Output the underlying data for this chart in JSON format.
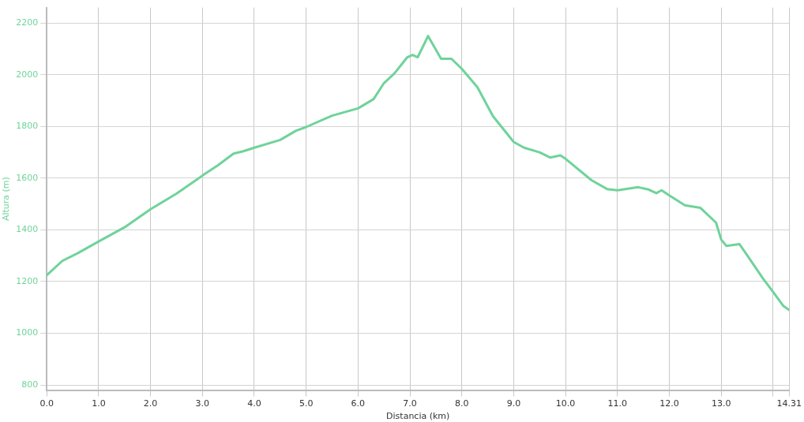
{
  "chart_data": {
    "type": "line",
    "xlabel": "Distancia (km)",
    "ylabel": "Altura (m)",
    "x": [
      0,
      0.3,
      0.6,
      1.0,
      1.5,
      2.0,
      2.5,
      3.0,
      3.3,
      3.6,
      3.8,
      4.0,
      4.5,
      4.8,
      5.0,
      5.5,
      6.0,
      6.3,
      6.5,
      6.7,
      6.95,
      7.05,
      7.15,
      7.35,
      7.6,
      7.8,
      8.0,
      8.3,
      8.6,
      9.0,
      9.2,
      9.5,
      9.7,
      9.9,
      10.0,
      10.5,
      10.8,
      11.0,
      11.4,
      11.6,
      11.75,
      11.85,
      12.0,
      12.3,
      12.6,
      12.9,
      13.0,
      13.1,
      13.35,
      13.5,
      13.8,
      14.0,
      14.2,
      14.31
    ],
    "series": [
      {
        "color": "#6fd39a",
        "values": [
          1225,
          1280,
          1310,
          1355,
          1410,
          1480,
          1540,
          1610,
          1650,
          1695,
          1705,
          1718,
          1748,
          1783,
          1798,
          1842,
          1870,
          1906,
          1968,
          2005,
          2068,
          2077,
          2068,
          2150,
          2062,
          2062,
          2023,
          1952,
          1840,
          1740,
          1718,
          1700,
          1680,
          1688,
          1675,
          1592,
          1558,
          1553,
          1565,
          1556,
          1542,
          1553,
          1533,
          1495,
          1485,
          1428,
          1362,
          1338,
          1345,
          1302,
          1213,
          1160,
          1105,
          1090
        ]
      }
    ],
    "xlim": [
      0,
      14.31
    ],
    "ylim": [
      780,
      2260
    ],
    "xticks": [
      {
        "value": 0,
        "label": "0.0"
      },
      {
        "value": 1,
        "label": "1.0"
      },
      {
        "value": 2,
        "label": "2.0"
      },
      {
        "value": 3,
        "label": "3.0"
      },
      {
        "value": 4,
        "label": "4.0"
      },
      {
        "value": 5,
        "label": "5.0"
      },
      {
        "value": 6,
        "label": "6.0"
      },
      {
        "value": 7,
        "label": "7.0"
      },
      {
        "value": 8,
        "label": "8.0"
      },
      {
        "value": 9,
        "label": "9.0"
      },
      {
        "value": 10,
        "label": "10.0"
      },
      {
        "value": 11,
        "label": "11.0"
      },
      {
        "value": 12,
        "label": "12.0"
      },
      {
        "value": 13,
        "label": "13.0"
      },
      {
        "value": 14,
        "label": null
      },
      {
        "value": 14.31,
        "label": "14.31"
      }
    ],
    "yticks": [
      800,
      1000,
      1200,
      1400,
      1600,
      1800,
      2000,
      2200
    ],
    "grid": true,
    "marker": "none",
    "line_style": "solid",
    "legend": false
  }
}
